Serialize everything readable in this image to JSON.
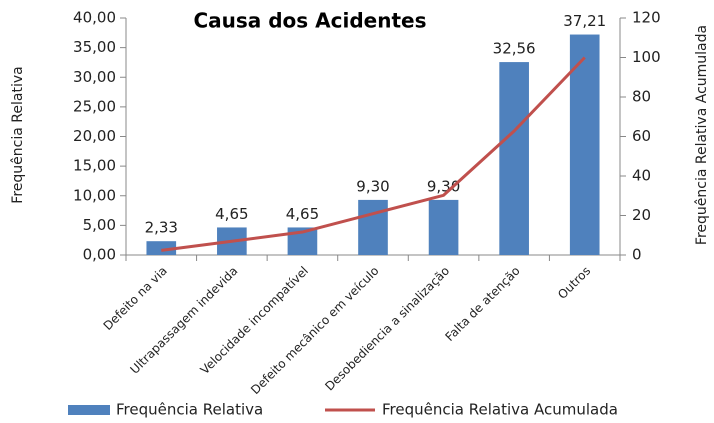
{
  "chart_data": {
    "type": "bar",
    "title": "Causa  dos Acidentes",
    "ylabel": "Frequência Relativa",
    "y2label": "Frequência Relativa Acumulada",
    "categories": [
      "Defeito na via",
      "Ultrapassagem indevida",
      "Velocidade incompatível",
      "Defeito mecânico em veículo",
      "Desobediencia a sinalização",
      "Falta de atenção",
      "Outros"
    ],
    "series": [
      {
        "name": "Frequência Relativa",
        "type": "bar",
        "color": "#4f81bd",
        "values": [
          2.33,
          4.65,
          4.65,
          9.3,
          9.3,
          32.56,
          37.21
        ],
        "value_labels": [
          "2,33",
          "4,65",
          "4,65",
          "9,30",
          "9,30",
          "32,56",
          "37,21"
        ]
      },
      {
        "name": "Frequência Relativa Acumulada",
        "type": "line",
        "color": "#c0504d",
        "axis": "y2",
        "values": [
          2.33,
          6.98,
          11.63,
          20.93,
          30.23,
          62.79,
          100
        ]
      }
    ],
    "ylim": [
      0,
      40
    ],
    "yticks": [
      {
        "value": 0,
        "label": "0,00"
      },
      {
        "value": 5,
        "label": "5,00"
      },
      {
        "value": 10,
        "label": "10,00"
      },
      {
        "value": 15,
        "label": "15,00"
      },
      {
        "value": 20,
        "label": "20,00"
      },
      {
        "value": 25,
        "label": "25,00"
      },
      {
        "value": 30,
        "label": "30,00"
      },
      {
        "value": 35,
        "label": "35,00"
      },
      {
        "value": 40,
        "label": "40,00"
      }
    ],
    "y2lim": [
      0,
      120
    ],
    "y2ticks": [
      0,
      20,
      40,
      60,
      80,
      100,
      120
    ],
    "grid": false,
    "legend": "bottom"
  }
}
